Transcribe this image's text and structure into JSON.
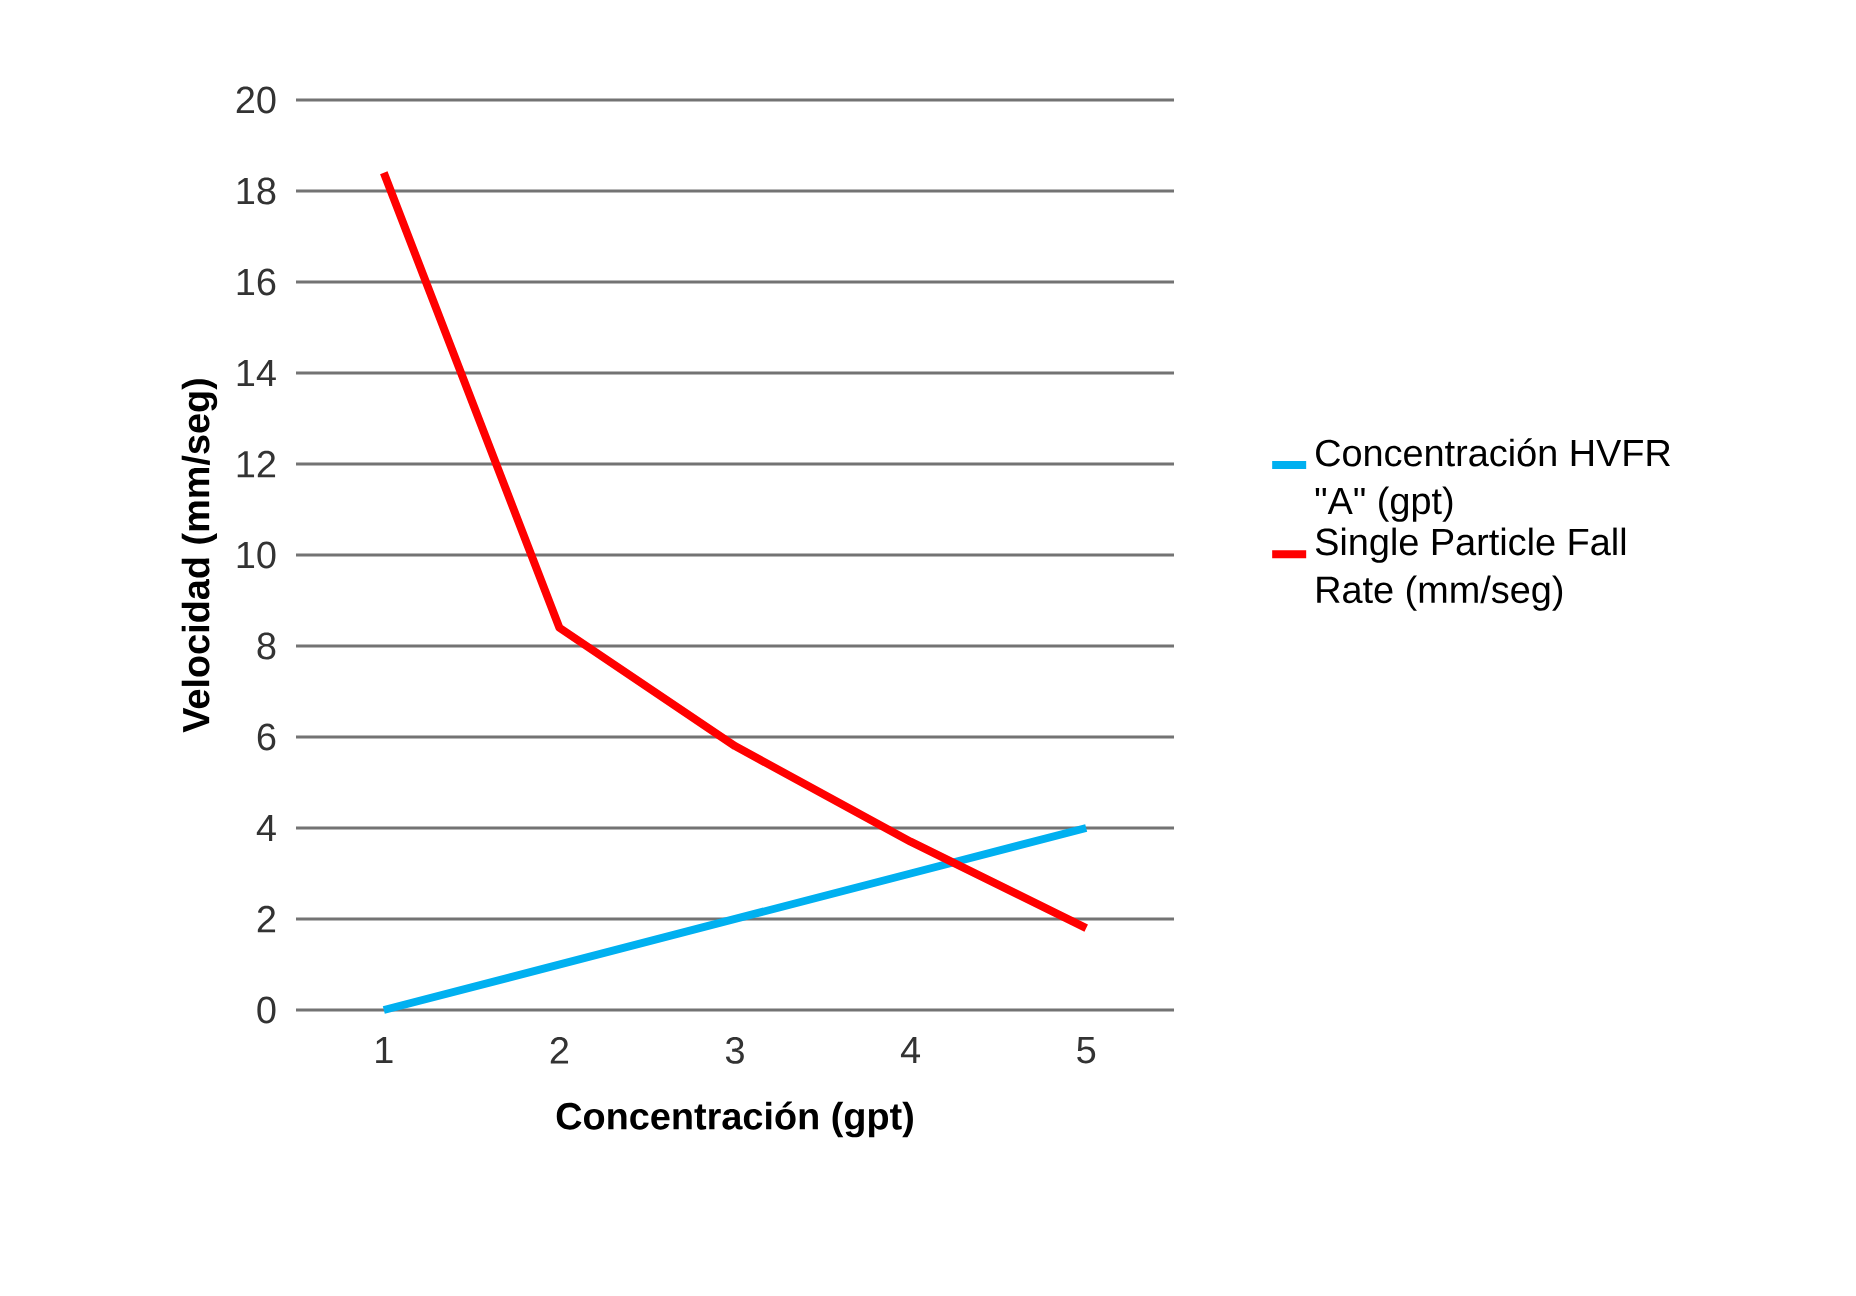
{
  "chart_data": {
    "type": "line",
    "xlabel": "Concentración (gpt)",
    "ylabel": "Velocidad (mm/seg)",
    "categories": [
      "1",
      "2",
      "3",
      "4",
      "5"
    ],
    "series": [
      {
        "name": "Concentración HVFR \"A\" (gpt)",
        "color": "#00b0f0",
        "values": [
          0,
          1,
          2,
          3,
          4
        ]
      },
      {
        "name": "Single Particle Fall Rate (mm/seg)",
        "color": "#ff0000",
        "values": [
          18.4,
          8.4,
          5.8,
          3.7,
          1.8
        ]
      }
    ],
    "ylim": [
      0,
      20
    ],
    "yticks": [
      0,
      2,
      4,
      6,
      8,
      10,
      12,
      14,
      16,
      18,
      20
    ],
    "grid": "y",
    "legend": "right",
    "marker": "none",
    "line_style": "solid"
  }
}
